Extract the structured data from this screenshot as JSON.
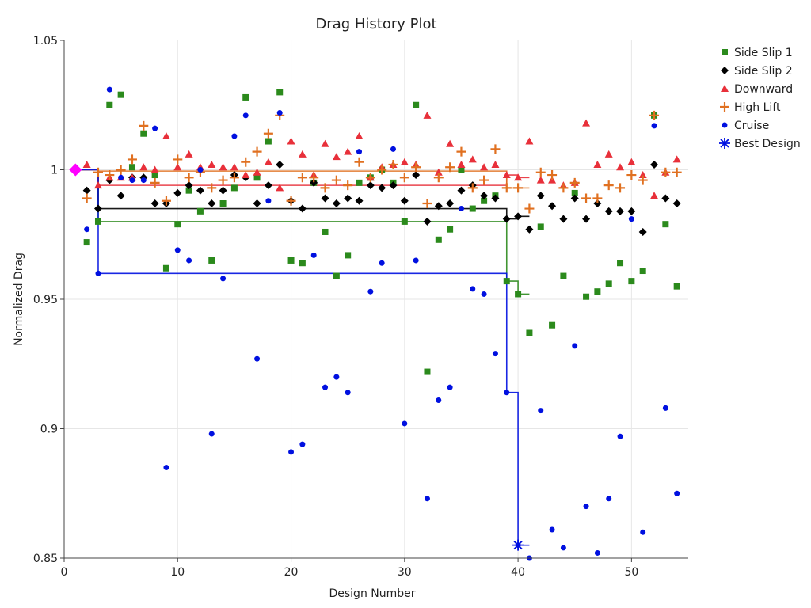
{
  "chart_data": {
    "type": "scatter",
    "title": "Drag History Plot",
    "xlabel": "Design Number",
    "ylabel": "Normalized Drag",
    "xlim": [
      0,
      55
    ],
    "ylim": [
      0.85,
      1.05
    ],
    "xticks": [
      0,
      10,
      20,
      30,
      40,
      50
    ],
    "yticks": [
      0.85,
      0.9,
      0.95,
      1,
      1.05
    ],
    "ytick_labels": [
      "0.85",
      "0.9",
      "0.95",
      "1",
      "1.05"
    ],
    "grid": true,
    "legend_position": "right-top",
    "x_start": 2,
    "series": [
      {
        "name": "Side Slip 1",
        "marker": "square",
        "color": "#2b8a1c",
        "values": [
          0.972,
          0.98,
          1.025,
          1.029,
          1.001,
          1.014,
          0.998,
          0.962,
          0.979,
          0.992,
          0.984,
          0.965,
          0.987,
          0.993,
          1.028,
          0.997,
          1.011,
          1.03,
          0.965,
          0.964,
          0.995,
          0.976,
          0.959,
          0.967,
          0.995,
          0.997,
          1.0,
          0.995,
          0.98,
          1.025,
          0.922,
          0.973,
          0.977,
          1.0,
          0.985,
          0.988,
          0.99,
          0.957,
          0.952,
          0.937,
          0.978,
          0.94,
          0.959,
          0.991,
          0.951,
          0.953,
          0.956,
          0.964,
          0.957,
          0.961,
          1.021,
          0.979,
          0.955
        ]
      },
      {
        "name": "Side Slip 2",
        "marker": "diamond",
        "color": "#000000",
        "values": [
          0.992,
          0.985,
          0.996,
          0.99,
          0.997,
          0.997,
          0.987,
          0.987,
          0.991,
          0.994,
          0.992,
          0.987,
          0.992,
          0.998,
          0.997,
          0.987,
          0.994,
          1.002,
          0.988,
          0.985,
          0.995,
          0.989,
          0.987,
          0.989,
          0.988,
          0.994,
          0.993,
          0.994,
          0.988,
          0.998,
          0.98,
          0.986,
          0.987,
          0.992,
          0.994,
          0.99,
          0.989,
          0.981,
          0.982,
          0.977,
          0.99,
          0.986,
          0.981,
          0.989,
          0.981,
          0.987,
          0.984,
          0.984,
          0.984,
          0.976,
          1.002,
          0.989,
          0.987
        ]
      },
      {
        "name": "Downward",
        "marker": "triangle",
        "color": "#e8303a",
        "values": [
          1.002,
          0.994,
          0.997,
          0.997,
          0.997,
          1.001,
          1.0,
          1.013,
          1.001,
          1.006,
          1.001,
          1.002,
          1.001,
          1.001,
          0.998,
          0.999,
          1.003,
          0.993,
          1.011,
          1.006,
          0.998,
          1.01,
          1.005,
          1.007,
          1.013,
          0.997,
          1.001,
          1.002,
          1.003,
          1.002,
          1.021,
          0.999,
          1.01,
          1.002,
          1.004,
          1.001,
          1.002,
          0.998,
          0.997,
          1.011,
          0.996,
          0.996,
          0.994,
          0.995,
          1.018,
          1.002,
          1.006,
          1.001,
          1.003,
          0.998,
          0.99,
          0.999,
          1.004
        ]
      },
      {
        "name": "High Lift",
        "marker": "plus",
        "color": "#e07020",
        "values": [
          0.989,
          0.999,
          0.998,
          1.0,
          1.004,
          1.017,
          0.995,
          0.988,
          1.004,
          0.997,
          0.999,
          0.993,
          0.996,
          0.997,
          1.003,
          1.007,
          1.014,
          1.021,
          0.988,
          0.997,
          0.997,
          0.993,
          0.996,
          0.994,
          1.003,
          0.997,
          1.0,
          1.002,
          0.997,
          1.001,
          0.987,
          0.997,
          1.001,
          1.007,
          0.993,
          0.996,
          1.008,
          0.993,
          0.993,
          0.985,
          0.999,
          0.998,
          0.993,
          0.995,
          0.989,
          0.989,
          0.994,
          0.993,
          0.998,
          0.996,
          1.021,
          0.999,
          0.999
        ]
      },
      {
        "name": "Cruise",
        "marker": "circle",
        "color": "#0010e0",
        "values": [
          0.977,
          0.96,
          1.031,
          0.997,
          0.996,
          0.996,
          1.016,
          0.885,
          0.969,
          0.965,
          1.0,
          0.898,
          0.958,
          1.013,
          1.021,
          0.927,
          0.988,
          1.022,
          0.891,
          0.894,
          0.967,
          0.916,
          0.92,
          0.914,
          1.007,
          0.953,
          0.964,
          1.008,
          0.902,
          0.965,
          0.873,
          0.911,
          0.916,
          0.985,
          0.954,
          0.952,
          0.929,
          0.914,
          0.855,
          0.85,
          0.907,
          0.861,
          0.854,
          0.932,
          0.87,
          0.852,
          0.873,
          0.897,
          0.981,
          0.86,
          1.017,
          0.908,
          0.875
        ]
      }
    ],
    "history": {
      "x": [
        1,
        3,
        39,
        40,
        41
      ],
      "series": [
        {
          "name": "Side Slip 1",
          "values": [
            1.0,
            0.98,
            0.957,
            0.952,
            0.952
          ]
        },
        {
          "name": "Side Slip 2",
          "values": [
            1.0,
            0.985,
            0.981,
            0.982,
            0.982
          ]
        },
        {
          "name": "Downward",
          "values": [
            1.0,
            0.994,
            0.998,
            0.997,
            0.997
          ]
        },
        {
          "name": "High Lift",
          "values": [
            1.0,
            0.9995,
            0.993,
            0.993,
            0.993
          ]
        },
        {
          "name": "Cruise",
          "values": [
            1.0,
            0.96,
            0.914,
            0.855,
            0.855
          ]
        }
      ]
    },
    "best_design": {
      "name": "Best Design",
      "x": 40,
      "y": 0.855,
      "color": "#0010e0",
      "marker": "asterisk"
    },
    "baseline": {
      "x": 1,
      "y": 1.0,
      "color": "#ff00ff",
      "marker": "diamond"
    }
  }
}
